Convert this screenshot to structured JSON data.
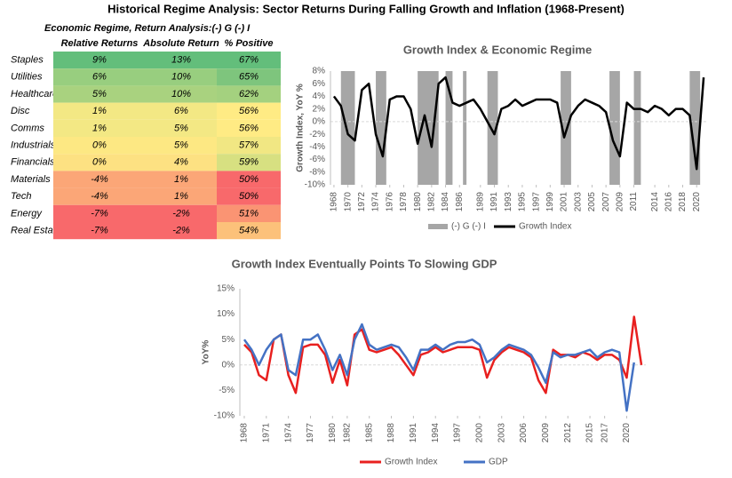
{
  "title": "Historical Regime Analysis: Sector Returns During Falling Growth and Inflation (1968-Present)",
  "table": {
    "caption": "Economic Regime, Return Analysis:(-) G (-) I",
    "columns": [
      "Relative Returns",
      "Absolute Return",
      "% Positive"
    ],
    "rows": [
      {
        "sector": "Staples",
        "cells": [
          "9%",
          "13%",
          "67%"
        ],
        "colors": [
          "#63be7b",
          "#63be7b",
          "#63be7b"
        ]
      },
      {
        "sector": "Utilities",
        "cells": [
          "6%",
          "10%",
          "65%"
        ],
        "colors": [
          "#98ce7f",
          "#98ce7f",
          "#7ec57d"
        ]
      },
      {
        "sector": "Healthcare",
        "cells": [
          "5%",
          "10%",
          "62%"
        ],
        "colors": [
          "#a9d27f",
          "#a9d27f",
          "#a4d17f"
        ]
      },
      {
        "sector": "Disc",
        "cells": [
          "1%",
          "6%",
          "56%"
        ],
        "colors": [
          "#f3e884",
          "#f3e884",
          "#ffeb84"
        ]
      },
      {
        "sector": "Comms",
        "cells": [
          "1%",
          "5%",
          "56%"
        ],
        "colors": [
          "#f3e884",
          "#f3e884",
          "#ffeb84"
        ]
      },
      {
        "sector": "Industrials",
        "cells": [
          "0%",
          "5%",
          "57%"
        ],
        "colors": [
          "#fde883",
          "#fde883",
          "#f1e783"
        ]
      },
      {
        "sector": "Financials",
        "cells": [
          "0%",
          "4%",
          "59%"
        ],
        "colors": [
          "#fde182",
          "#fde182",
          "#d7e081"
        ]
      },
      {
        "sector": "Materials",
        "cells": [
          "-4%",
          "1%",
          "50%"
        ],
        "colors": [
          "#fba677",
          "#fba677",
          "#f8696b"
        ]
      },
      {
        "sector": "Tech",
        "cells": [
          "-4%",
          "1%",
          "50%"
        ],
        "colors": [
          "#fba677",
          "#fba677",
          "#f8696b"
        ]
      },
      {
        "sector": "Energy",
        "cells": [
          "-7%",
          "-2%",
          "51%"
        ],
        "colors": [
          "#f8696b",
          "#f8696b",
          "#fa9473"
        ]
      },
      {
        "sector": "Real Estate",
        "cells": [
          "-7%",
          "-2%",
          "54%"
        ],
        "colors": [
          "#f8696b",
          "#f8696b",
          "#fcc17a"
        ]
      }
    ]
  },
  "chart_data": [
    {
      "type": "line",
      "title": "Growth Index & Economic Regime",
      "y_label": "Growth Index, YoY %",
      "x": [
        1968,
        1969,
        1970,
        1971,
        1972,
        1973,
        1974,
        1975,
        1976,
        1977,
        1978,
        1979,
        1980,
        1981,
        1982,
        1983,
        1984,
        1985,
        1986,
        1987,
        1988,
        1989,
        1990,
        1991,
        1992,
        1993,
        1994,
        1995,
        1996,
        1997,
        1998,
        1999,
        2000,
        2001,
        2002,
        2003,
        2004,
        2005,
        2006,
        2007,
        2008,
        2009,
        2010,
        2011,
        2012,
        2013,
        2014,
        2015,
        2016,
        2017,
        2018,
        2019,
        2020,
        2021
      ],
      "series": [
        {
          "name": "Growth Index",
          "color": "#000000",
          "values": [
            4,
            2.5,
            -2,
            -3,
            5,
            6,
            -2,
            -5.5,
            3.5,
            4,
            4,
            2,
            -3.5,
            1,
            -4,
            6,
            7,
            3,
            2.5,
            3,
            3.5,
            2,
            0,
            -2,
            2,
            2.5,
            3.5,
            2.5,
            3,
            3.5,
            3.5,
            3.5,
            3,
            -2.5,
            1,
            2.5,
            3.5,
            3,
            2.5,
            1.5,
            -3,
            -5.5,
            3,
            2,
            2,
            1.5,
            2.5,
            2,
            1,
            2,
            2,
            1,
            -7.5,
            7
          ]
        }
      ],
      "regimes": {
        "name": "(-) G (-) I",
        "color": "#a6a6a6",
        "periods": [
          [
            1969,
            1971
          ],
          [
            1974,
            1975.5
          ],
          [
            1980,
            1983
          ],
          [
            1984,
            1985
          ],
          [
            1986.5,
            1987
          ],
          [
            1990,
            1991.5
          ],
          [
            2000.5,
            2002
          ],
          [
            2007.5,
            2009
          ],
          [
            2011,
            2012
          ],
          [
            2019,
            2020.5
          ]
        ]
      },
      "xlim": [
        1967.5,
        2021.5
      ],
      "xticks": [
        1968,
        1970,
        1972,
        1974,
        1976,
        1978,
        1980,
        1982,
        1984,
        1986,
        1989,
        1991,
        1993,
        1995,
        1997,
        1999,
        2001,
        2003,
        2005,
        2007,
        2009,
        2011,
        2014,
        2016,
        2018,
        2020
      ],
      "ylim": [
        -10,
        8
      ],
      "yticks": [
        {
          "value": -10,
          "label": "-10%"
        },
        {
          "value": -8,
          "label": "-8%"
        },
        {
          "value": -6,
          "label": "-6%"
        },
        {
          "value": -4,
          "label": "-4%"
        },
        {
          "value": -2,
          "label": "-2%"
        },
        {
          "value": 0,
          "label": "0%"
        },
        {
          "value": 2,
          "label": "2%"
        },
        {
          "value": 4,
          "label": "4%"
        },
        {
          "value": 6,
          "label": "6%"
        },
        {
          "value": 8,
          "label": "8%"
        }
      ],
      "grid": false,
      "legend": "bottom"
    },
    {
      "type": "line",
      "title": "Growth Index Eventually Points To Slowing GDP",
      "y_label": "YoY%",
      "x": [
        1968,
        1969,
        1970,
        1971,
        1972,
        1973,
        1974,
        1975,
        1976,
        1977,
        1978,
        1979,
        1980,
        1981,
        1982,
        1983,
        1984,
        1985,
        1986,
        1987,
        1988,
        1989,
        1990,
        1991,
        1992,
        1993,
        1994,
        1995,
        1996,
        1997,
        1998,
        1999,
        2000,
        2001,
        2002,
        2003,
        2004,
        2005,
        2006,
        2007,
        2008,
        2009,
        2010,
        2011,
        2012,
        2013,
        2014,
        2015,
        2016,
        2017,
        2018,
        2019,
        2020,
        2021,
        2022
      ],
      "series": [
        {
          "name": "Growth Index",
          "color": "#e8201f",
          "values": [
            4,
            2.5,
            -2,
            -3,
            5,
            6,
            -2,
            -5.5,
            3.5,
            4,
            4,
            2,
            -3.5,
            1,
            -4,
            6,
            7,
            3,
            2.5,
            3,
            3.5,
            2,
            0,
            -2,
            2,
            2.5,
            3.5,
            2.5,
            3,
            3.5,
            3.5,
            3.5,
            3,
            -2.5,
            1,
            2.5,
            3.5,
            3,
            2.5,
            1.5,
            -3,
            -5.5,
            3,
            2,
            2,
            1.5,
            2.5,
            2,
            1,
            2,
            2,
            1,
            -2.5,
            9.5,
            0
          ]
        },
        {
          "name": "GDP",
          "color": "#4472c4",
          "values": [
            5,
            3,
            0,
            3,
            5,
            6,
            -1,
            -2,
            5,
            5,
            6,
            3,
            -1,
            2,
            -2,
            5,
            8,
            4,
            3,
            3.5,
            4,
            3.5,
            1.5,
            -1,
            3,
            3,
            4,
            3,
            4,
            4.5,
            4.5,
            5,
            4,
            0.5,
            1.5,
            3,
            4,
            3.5,
            3,
            2,
            -0.5,
            -3.5,
            2.5,
            1.5,
            2,
            2,
            2.5,
            3,
            1.5,
            2.5,
            3,
            2.5,
            -9,
            0.5,
            null
          ]
        }
      ],
      "xlim": [
        1967.4,
        2022.6
      ],
      "xticks": [
        1968,
        1971,
        1974,
        1977,
        1980,
        1982,
        1985,
        1988,
        1991,
        1994,
        1997,
        2000,
        2003,
        2006,
        2009,
        2012,
        2015,
        2017,
        2020
      ],
      "ylim": [
        -10,
        15
      ],
      "yticks": [
        {
          "value": -10,
          "label": "-10%"
        },
        {
          "value": -5,
          "label": "-5%"
        },
        {
          "value": 0,
          "label": "0%"
        },
        {
          "value": 5,
          "label": "5%"
        },
        {
          "value": 10,
          "label": "10%"
        },
        {
          "value": 15,
          "label": "15%"
        }
      ],
      "grid": false,
      "legend": "bottom"
    }
  ]
}
